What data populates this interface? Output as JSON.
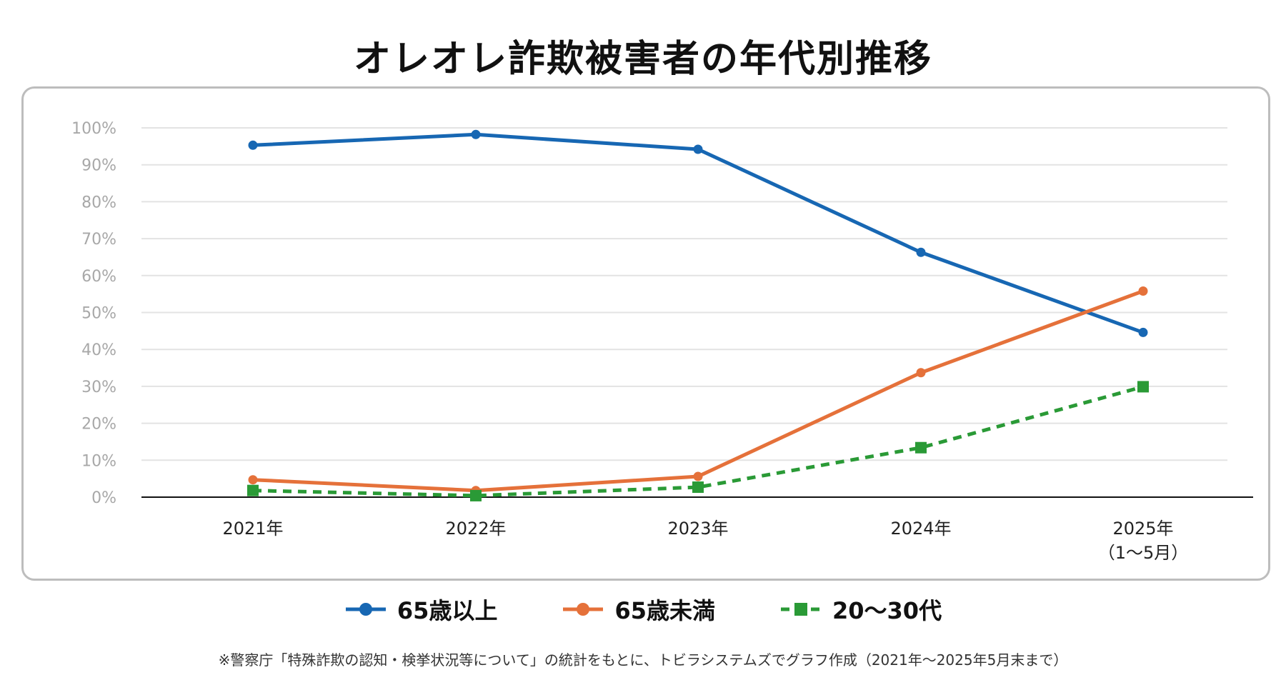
{
  "title": "オレオレ詐欺被害者の年代別推移",
  "footnote": "※警察庁「特殊詐欺の認知・検挙状況等について」の統計をもとに、トビラシステムズでグラフ作成（2021年〜2025年5月末まで）",
  "chart_data": {
    "type": "line",
    "title": "オレオレ詐欺被害者の年代別推移",
    "categories": [
      "2021年",
      "2022年",
      "2023年",
      "2024年",
      "2025年\n（1〜5月）"
    ],
    "category_lines": [
      [
        "2021年"
      ],
      [
        "2022年"
      ],
      [
        "2023年"
      ],
      [
        "2024年"
      ],
      [
        "2025年",
        "（1〜5月）"
      ]
    ],
    "ylim": [
      0,
      100
    ],
    "yticks": [
      "0%",
      "10%",
      "20%",
      "30%",
      "40%",
      "50%",
      "60%",
      "70%",
      "80%",
      "90%",
      "100%"
    ],
    "grid": true,
    "legend": "bottom",
    "series": [
      {
        "name": "65歳以上",
        "color": "#1767b3",
        "marker": "circle",
        "dash": false,
        "values": [
          95.3,
          98.2,
          94.2,
          66.3,
          44.6
        ]
      },
      {
        "name": "65歳未満",
        "color": "#e5713a",
        "marker": "circle",
        "dash": false,
        "values": [
          4.7,
          1.8,
          5.6,
          33.7,
          55.8
        ]
      },
      {
        "name": "20〜30代",
        "color": "#2a9a36",
        "marker": "square",
        "dash": true,
        "values": [
          1.8,
          0.4,
          2.7,
          13.4,
          29.9
        ]
      }
    ]
  }
}
